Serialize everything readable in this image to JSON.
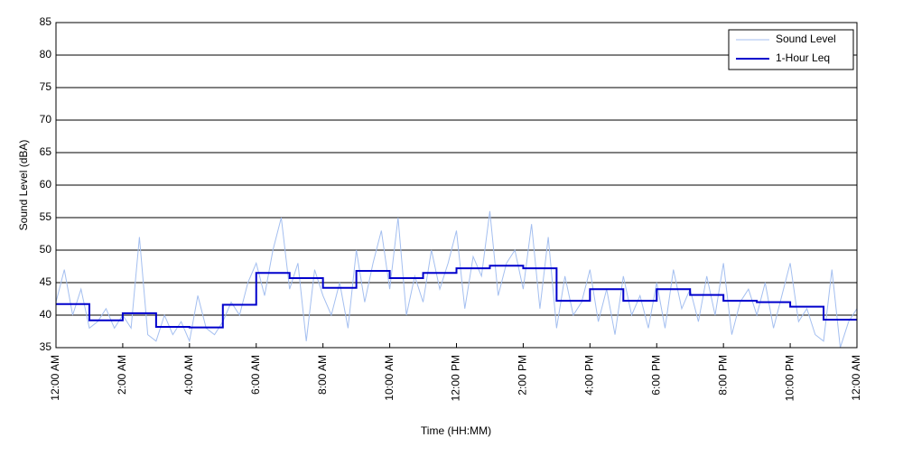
{
  "chart_data": {
    "type": "line",
    "xlabel": "Time (HH:MM)",
    "ylabel": "Sound Level (dBA)",
    "xlim": [
      0,
      24
    ],
    "ylim": [
      35,
      85
    ],
    "xticks": [
      {
        "value": 0,
        "label": "12:00 AM"
      },
      {
        "value": 2,
        "label": "2:00 AM"
      },
      {
        "value": 4,
        "label": "4:00 AM"
      },
      {
        "value": 6,
        "label": "6:00 AM"
      },
      {
        "value": 8,
        "label": "8:00 AM"
      },
      {
        "value": 10,
        "label": "10:00 AM"
      },
      {
        "value": 12,
        "label": "12:00 PM"
      },
      {
        "value": 14,
        "label": "2:00 PM"
      },
      {
        "value": 16,
        "label": "4:00 PM"
      },
      {
        "value": 18,
        "label": "6:00 PM"
      },
      {
        "value": 20,
        "label": "8:00 PM"
      },
      {
        "value": 22,
        "label": "10:00 PM"
      },
      {
        "value": 24,
        "label": "12:00 AM"
      }
    ],
    "yticks": [
      35,
      40,
      45,
      50,
      55,
      60,
      65,
      70,
      75,
      80,
      85
    ],
    "grid": true,
    "legend": "upper right",
    "series": [
      {
        "name": "Sound Level",
        "color": "#a4bff0",
        "x": [
          0,
          0.25,
          0.5,
          0.75,
          1,
          1.25,
          1.5,
          1.75,
          2,
          2.25,
          2.5,
          2.75,
          3,
          3.25,
          3.5,
          3.75,
          4,
          4.25,
          4.5,
          4.75,
          5,
          5.25,
          5.5,
          5.75,
          6,
          6.25,
          6.5,
          6.75,
          7,
          7.25,
          7.5,
          7.75,
          8,
          8.25,
          8.5,
          8.75,
          9,
          9.25,
          9.5,
          9.75,
          10,
          10.25,
          10.5,
          10.75,
          11,
          11.25,
          11.5,
          11.75,
          12,
          12.25,
          12.5,
          12.75,
          13,
          13.25,
          13.5,
          13.75,
          14,
          14.25,
          14.5,
          14.75,
          15,
          15.25,
          15.5,
          15.75,
          16,
          16.25,
          16.5,
          16.75,
          17,
          17.25,
          17.5,
          17.75,
          18,
          18.25,
          18.5,
          18.75,
          19,
          19.25,
          19.5,
          19.75,
          20,
          20.25,
          20.5,
          20.75,
          21,
          21.25,
          21.5,
          21.75,
          22,
          22.25,
          22.5,
          22.75,
          23,
          23.25,
          23.5,
          23.75,
          24
        ],
        "values": [
          42,
          47,
          40,
          44,
          38,
          39,
          41,
          38,
          40,
          38,
          52,
          37,
          36,
          40,
          37,
          39,
          36,
          43,
          38,
          37,
          39,
          42,
          40,
          45,
          48,
          43,
          50,
          55,
          44,
          48,
          36,
          47,
          43,
          40,
          45,
          38,
          50,
          42,
          48,
          53,
          44,
          55,
          40,
          46,
          42,
          50,
          44,
          48,
          53,
          41,
          49,
          46,
          56,
          43,
          48,
          50,
          44,
          54,
          41,
          52,
          38,
          46,
          40,
          42,
          47,
          39,
          44,
          37,
          46,
          40,
          43,
          38,
          45,
          38,
          47,
          41,
          44,
          39,
          46,
          40,
          48,
          37,
          42,
          44,
          40,
          45,
          38,
          43,
          48,
          39,
          41,
          37,
          36,
          47,
          35,
          39,
          41
        ]
      },
      {
        "name": "1-Hour Leq",
        "color": "#0000cc",
        "step": "post",
        "x": [
          0,
          1,
          2,
          3,
          4,
          5,
          6,
          7,
          8,
          9,
          10,
          11,
          12,
          13,
          14,
          15,
          16,
          17,
          18,
          19,
          20,
          21,
          22,
          23
        ],
        "values": [
          41.7,
          39.2,
          40.3,
          38.2,
          38.1,
          41.6,
          46.5,
          45.7,
          44.2,
          46.8,
          45.7,
          46.5,
          47.2,
          47.6,
          47.2,
          42.2,
          44.0,
          42.2,
          44.0,
          43.1,
          42.2,
          42.0,
          41.3,
          39.3
        ]
      }
    ]
  }
}
